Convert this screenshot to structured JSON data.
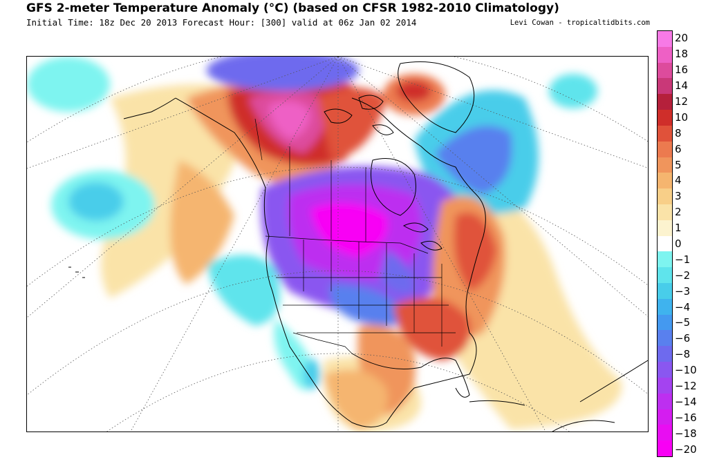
{
  "header": {
    "title": "GFS 2-meter Temperature Anomaly (°C) (based on CFSR 1982-2010 Climatology)",
    "subtitle": "Initial Time: 18z Dec 20 2013 Forecast Hour: [300] valid at 06z Jan 02 2014",
    "credit": "Levi Cowan - tropicaltidbits.com"
  },
  "colorbar": {
    "unit": "°C",
    "bins": [
      {
        "label": "20",
        "color": "#f77ae6"
      },
      {
        "label": "18",
        "color": "#ee60c5"
      },
      {
        "label": "16",
        "color": "#dd4b9c"
      },
      {
        "label": "14",
        "color": "#c93878"
      },
      {
        "label": "12",
        "color": "#b5203b"
      },
      {
        "label": "10",
        "color": "#cf2e2a"
      },
      {
        "label": "8",
        "color": "#e0523a"
      },
      {
        "label": "6",
        "color": "#ec7a4f"
      },
      {
        "label": "5",
        "color": "#f0955c"
      },
      {
        "label": "4",
        "color": "#f5b56f"
      },
      {
        "label": "3",
        "color": "#f8cf88"
      },
      {
        "label": "2",
        "color": "#fae3a8"
      },
      {
        "label": "1",
        "color": "#fcf3cf"
      },
      {
        "label": "0",
        "color": "#ffffff"
      },
      {
        "label": "−1",
        "color": "#7ef4f0"
      },
      {
        "label": "−2",
        "color": "#5fe4ec"
      },
      {
        "label": "−3",
        "color": "#48cdea"
      },
      {
        "label": "−4",
        "color": "#3fb3ee"
      },
      {
        "label": "−5",
        "color": "#4499f0"
      },
      {
        "label": "−6",
        "color": "#5980ee"
      },
      {
        "label": "−8",
        "color": "#6e6aee"
      },
      {
        "label": "−10",
        "color": "#8a57f0"
      },
      {
        "label": "−12",
        "color": "#a443f0"
      },
      {
        "label": "−14",
        "color": "#bd2ff0"
      },
      {
        "label": "−16",
        "color": "#d41df0"
      },
      {
        "label": "−18",
        "color": "#e80ef2"
      },
      {
        "label": "−20",
        "color": "#f800f5"
      }
    ]
  },
  "map": {
    "projection": "polar stereographic",
    "region": "North America",
    "colors": {
      "coast": "#000000",
      "graticule": "#555555"
    }
  }
}
